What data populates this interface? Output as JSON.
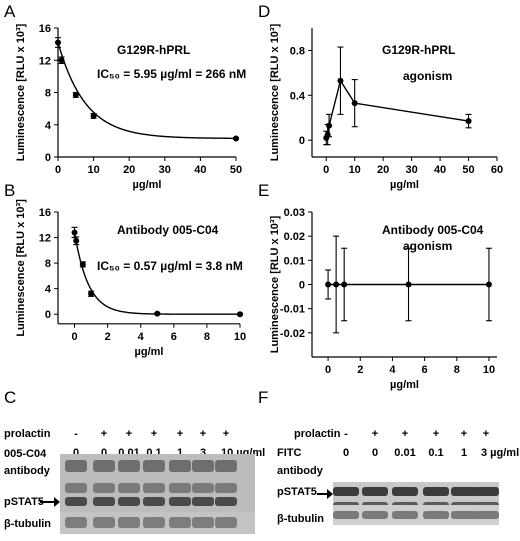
{
  "panel_letters": {
    "A": "A",
    "B": "B",
    "C": "C",
    "D": "D",
    "E": "E",
    "F": "F"
  },
  "chart_data": [
    {
      "panel": "A",
      "type": "scatter",
      "xlabel": "µg/ml",
      "ylabel": "Luminescence [RLU x 10³]",
      "xlim": [
        0,
        50
      ],
      "ylim": [
        0,
        16
      ],
      "xticks": [
        "0",
        "10",
        "20",
        "30",
        "40",
        "50"
      ],
      "yticks": [
        "0",
        "4",
        "8",
        "12",
        "16"
      ],
      "annotations": [
        "G129R-hPRL",
        "IC₅₀ = 5.95 µg/ml = 266 nM"
      ],
      "points": {
        "x": [
          0,
          1,
          5,
          10,
          50
        ],
        "y": [
          14.2,
          12.0,
          7.7,
          5.1,
          2.3
        ],
        "err": [
          0.6,
          0.4,
          0.3,
          0.3,
          0.1
        ]
      },
      "fit_curve": {
        "bottom": 2.3,
        "top": 14.2,
        "rate": 0.13
      }
    },
    {
      "panel": "B",
      "type": "scatter",
      "xlabel": "µg/ml",
      "ylabel": "Luminescence [RLU x 10³]",
      "xlim": [
        -1,
        10
      ],
      "ylim": [
        -2,
        16
      ],
      "xticks": [
        "0",
        "2",
        "4",
        "6",
        "8",
        "10"
      ],
      "yticks": [
        "0",
        "4",
        "8",
        "12",
        "16"
      ],
      "annotations": [
        "Antibody 005-C04",
        "IC₅₀ = 0.57 µg/ml = 3.8 nM"
      ],
      "points": {
        "x": [
          0,
          0.1,
          0.5,
          1,
          5,
          10
        ],
        "y": [
          12.8,
          11.5,
          7.8,
          3.2,
          0.1,
          0.0
        ],
        "err": [
          0.8,
          0.6,
          0.4,
          0.4,
          0.1,
          0.1
        ]
      },
      "fit_curve": {
        "bottom": 0.0,
        "top": 12.8,
        "rate": 1.2
      }
    },
    {
      "panel": "D",
      "type": "line",
      "xlabel": "µg/ml",
      "ylabel": "Luminescence [RLU x 10³]",
      "xlim": [
        -5,
        60
      ],
      "ylim": [
        -0.15,
        1.0
      ],
      "xticks": [
        "0",
        "10",
        "20",
        "30",
        "40",
        "50",
        "60"
      ],
      "yticks": [
        "0",
        "0.4",
        "0.8"
      ],
      "annotations": [
        "G129R-hPRL",
        "agonism"
      ],
      "points": {
        "x": [
          0,
          0.5,
          1,
          5,
          10,
          50
        ],
        "y": [
          0.02,
          0.05,
          0.13,
          0.53,
          0.33,
          0.17
        ],
        "err": [
          0.06,
          0.09,
          0.1,
          0.3,
          0.21,
          0.06
        ]
      }
    },
    {
      "panel": "E",
      "type": "line",
      "xlabel": "µg/ml",
      "ylabel": "Luminescence [RLU x 10³]",
      "xlim": [
        -1,
        10.5
      ],
      "ylim": [
        -0.03,
        0.03
      ],
      "xticks": [
        "0",
        "2",
        "4",
        "6",
        "8",
        "10"
      ],
      "yticks": [
        "-0.02",
        "-0.01",
        "0",
        "0.01",
        "0.02",
        "0.03"
      ],
      "annotations": [
        "Antibody 005-C04",
        "agonism"
      ],
      "points": {
        "x": [
          0,
          0.5,
          1,
          5,
          10
        ],
        "y": [
          0,
          0,
          0,
          0,
          0
        ],
        "err": [
          0.006,
          0.02,
          0.015,
          0.015,
          0.015
        ]
      }
    }
  ],
  "blot_C": {
    "row1_label": "prolactin",
    "row2_label": "005-C04",
    "row3_label": "antibody",
    "prolactin_marks": [
      "-",
      "+",
      "+",
      "+",
      "+",
      "+",
      "+"
    ],
    "doses": [
      "0",
      "0",
      "0.01",
      "0.1",
      "1",
      "3",
      "10 µg/ml"
    ],
    "pstat_label": "pSTAT5",
    "tubulin_label": "β-tubulin"
  },
  "blot_F": {
    "row1_label": "prolactin",
    "row2_label": "FITC",
    "row3_label": "antibody",
    "prolactin_marks": [
      "-",
      "+",
      "+",
      "+",
      "+",
      "+"
    ],
    "doses": [
      "0",
      "0",
      "0.01",
      "0.1",
      "1",
      "3 µg/ml"
    ],
    "pstat_label": "pSTAT5",
    "tubulin_label": "β-tubulin"
  }
}
